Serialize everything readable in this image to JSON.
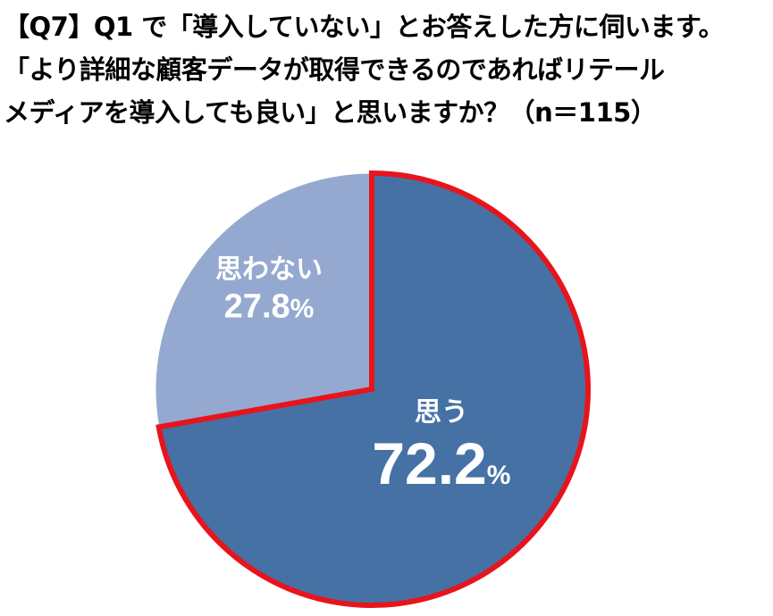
{
  "title": {
    "lines": [
      "【Q7】Q1 で「導入していない」とお答えした方に伺います。",
      "「より詳細な顧客データが取得できるのであればリテール",
      "メディアを導入しても良い」と思いますか？（n＝115）"
    ]
  },
  "chart_data": {
    "type": "pie",
    "slices": [
      {
        "label": "思う",
        "value": 72.2,
        "display": "72.2",
        "unit": "%",
        "color": "#4571A5",
        "highlighted": true,
        "highlight_color": "#E8141C"
      },
      {
        "label": "思わない",
        "value": 27.8,
        "display": "27.8",
        "unit": "%",
        "color": "#95A9D0",
        "highlighted": false
      }
    ],
    "start": "12 o'clock",
    "direction": "clockwise",
    "label_color": "#ffffff",
    "legend": "none"
  }
}
